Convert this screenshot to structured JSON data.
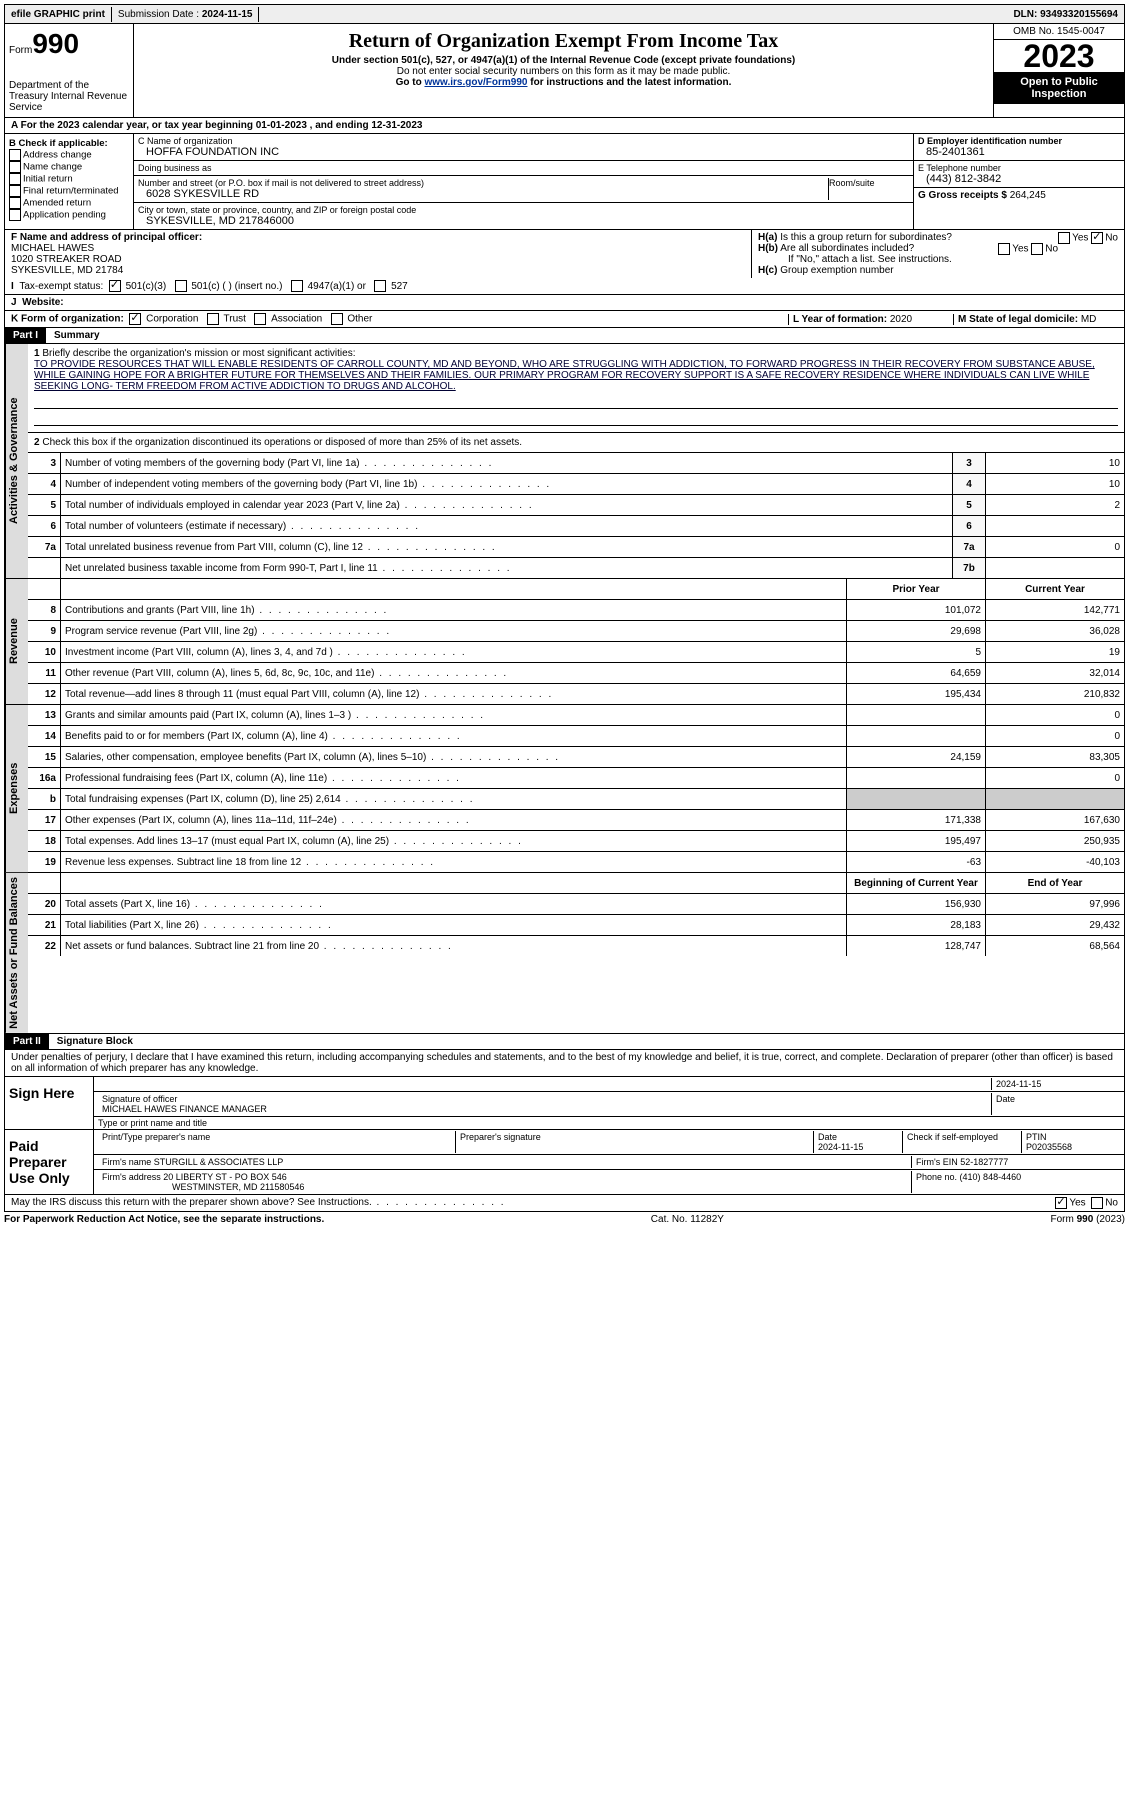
{
  "topbar": {
    "efile": "efile GRAPHIC print",
    "submission_label": "Submission Date : ",
    "submission_date": "2024-11-15",
    "dln_label": "DLN: ",
    "dln": "93493320155694"
  },
  "header": {
    "form_word": "Form",
    "form_num": "990",
    "dept": "Department of the Treasury Internal Revenue Service",
    "title": "Return of Organization Exempt From Income Tax",
    "sub": "Under section 501(c), 527, or 4947(a)(1) of the Internal Revenue Code (except private foundations)",
    "ssn": "Do not enter social security numbers on this form as it may be made public.",
    "goto_pre": "Go to ",
    "goto_link": "www.irs.gov/Form990",
    "goto_post": " for instructions and the latest information.",
    "omb": "OMB No. 1545-0047",
    "year": "2023",
    "open": "Open to Public Inspection"
  },
  "rowA": {
    "text_pre": "A For the 2023 calendar year, or tax year beginning ",
    "begin": "01-01-2023",
    "mid": "  , and ending ",
    "end": "12-31-2023"
  },
  "colB": {
    "title": "B Check if applicable:",
    "items": [
      "Address change",
      "Name change",
      "Initial return",
      "Final return/terminated",
      "Amended return",
      "Application pending"
    ]
  },
  "colC": {
    "name_label": "C Name of organization",
    "name": "HOFFA FOUNDATION INC",
    "dba_label": "Doing business as",
    "dba": "",
    "street_label": "Number and street (or P.O. box if mail is not delivered to street address)",
    "room_label": "Room/suite",
    "street": "6028 SYKESVILLE RD",
    "city_label": "City or town, state or province, country, and ZIP or foreign postal code",
    "city": "SYKESVILLE, MD  217846000"
  },
  "colD": {
    "ein_label": "D Employer identification number",
    "ein": "85-2401361",
    "phone_label": "E Telephone number",
    "phone": "(443) 812-3842",
    "gross_label": "G Gross receipts $ ",
    "gross": "264,245"
  },
  "rowF": {
    "label": "F Name and address of principal officer:",
    "name": "MICHAEL HAWES",
    "addr1": "1020 STREAKER ROAD",
    "addr2": "SYKESVILLE, MD  21784"
  },
  "rowH": {
    "ha": "Is this a group return for subordinates?",
    "hb": "Are all subordinates included?",
    "hb_note": "If \"No,\" attach a list. See instructions.",
    "hc": "Group exemption number",
    "yes": "Yes",
    "no": "No"
  },
  "rowI": {
    "label": "Tax-exempt status:",
    "opts": [
      "501(c)(3)",
      "501(c) (  ) (insert no.)",
      "4947(a)(1) or",
      "527"
    ]
  },
  "rowJ": {
    "label": "Website:",
    "val": ""
  },
  "rowK": {
    "label": "K Form of organization:",
    "opts": [
      "Corporation",
      "Trust",
      "Association",
      "Other"
    ],
    "L_label": "L Year of formation: ",
    "L_val": "2020",
    "M_label": "M State of legal domicile: ",
    "M_val": "MD"
  },
  "part1": {
    "header": "Part I",
    "title": "Summary",
    "mission_label": "Briefly describe the organization's mission or most significant activities:",
    "mission": "TO PROVIDE RESOURCES THAT WILL ENABLE RESIDENTS OF CARROLL COUNTY, MD AND BEYOND, WHO ARE STRUGGLING WITH ADDICTION, TO FORWARD PROGRESS IN THEIR RECOVERY FROM SUBSTANCE ABUSE, WHILE GAINING HOPE FOR A BRIGHTER FUTURE FOR THEMSELVES AND THEIR FAMILIES. OUR PRIMARY PROGRAM FOR RECOVERY SUPPORT IS A SAFE RECOVERY RESIDENCE WHERE INDIVIDUALS CAN LIVE WHILE SEEKING LONG- TERM FREEDOM FROM ACTIVE ADDICTION TO DRUGS AND ALCOHOL.",
    "line2": "Check this box         if the organization discontinued its operations or disposed of more than 25% of its net assets.",
    "rows_gov": [
      {
        "n": "3",
        "d": "Number of voting members of the governing body (Part VI, line 1a)",
        "k": "3",
        "v": "10"
      },
      {
        "n": "4",
        "d": "Number of independent voting members of the governing body (Part VI, line 1b)",
        "k": "4",
        "v": "10"
      },
      {
        "n": "5",
        "d": "Total number of individuals employed in calendar year 2023 (Part V, line 2a)",
        "k": "5",
        "v": "2"
      },
      {
        "n": "6",
        "d": "Total number of volunteers (estimate if necessary)",
        "k": "6",
        "v": ""
      },
      {
        "n": "7a",
        "d": "Total unrelated business revenue from Part VIII, column (C), line 12",
        "k": "7a",
        "v": "0"
      },
      {
        "n": "",
        "d": "Net unrelated business taxable income from Form 990-T, Part I, line 11",
        "k": "7b",
        "v": ""
      }
    ],
    "prior_hdr": "Prior Year",
    "curr_hdr": "Current Year",
    "rows_rev": [
      {
        "n": "8",
        "d": "Contributions and grants (Part VIII, line 1h)",
        "p": "101,072",
        "c": "142,771"
      },
      {
        "n": "9",
        "d": "Program service revenue (Part VIII, line 2g)",
        "p": "29,698",
        "c": "36,028"
      },
      {
        "n": "10",
        "d": "Investment income (Part VIII, column (A), lines 3, 4, and 7d )",
        "p": "5",
        "c": "19"
      },
      {
        "n": "11",
        "d": "Other revenue (Part VIII, column (A), lines 5, 6d, 8c, 9c, 10c, and 11e)",
        "p": "64,659",
        "c": "32,014"
      },
      {
        "n": "12",
        "d": "Total revenue—add lines 8 through 11 (must equal Part VIII, column (A), line 12)",
        "p": "195,434",
        "c": "210,832"
      }
    ],
    "rows_exp": [
      {
        "n": "13",
        "d": "Grants and similar amounts paid (Part IX, column (A), lines 1–3 )",
        "p": "",
        "c": "0"
      },
      {
        "n": "14",
        "d": "Benefits paid to or for members (Part IX, column (A), line 4)",
        "p": "",
        "c": "0"
      },
      {
        "n": "15",
        "d": "Salaries, other compensation, employee benefits (Part IX, column (A), lines 5–10)",
        "p": "24,159",
        "c": "83,305"
      },
      {
        "n": "16a",
        "d": "Professional fundraising fees (Part IX, column (A), line 11e)",
        "p": "",
        "c": "0"
      },
      {
        "n": "b",
        "d": "Total fundraising expenses (Part IX, column (D), line 25) 2,614",
        "p": "grey",
        "c": "grey"
      },
      {
        "n": "17",
        "d": "Other expenses (Part IX, column (A), lines 11a–11d, 11f–24e)",
        "p": "171,338",
        "c": "167,630"
      },
      {
        "n": "18",
        "d": "Total expenses. Add lines 13–17 (must equal Part IX, column (A), line 25)",
        "p": "195,497",
        "c": "250,935"
      },
      {
        "n": "19",
        "d": "Revenue less expenses. Subtract line 18 from line 12",
        "p": "-63",
        "c": "-40,103"
      }
    ],
    "begin_hdr": "Beginning of Current Year",
    "end_hdr": "End of Year",
    "rows_net": [
      {
        "n": "20",
        "d": "Total assets (Part X, line 16)",
        "p": "156,930",
        "c": "97,996"
      },
      {
        "n": "21",
        "d": "Total liabilities (Part X, line 26)",
        "p": "28,183",
        "c": "29,432"
      },
      {
        "n": "22",
        "d": "Net assets or fund balances. Subtract line 21 from line 20",
        "p": "128,747",
        "c": "68,564"
      }
    ],
    "tabs": {
      "gov": "Activities & Governance",
      "rev": "Revenue",
      "exp": "Expenses",
      "net": "Net Assets or Fund Balances"
    }
  },
  "part2": {
    "header": "Part II",
    "title": "Signature Block",
    "penalties": "Under penalties of perjury, I declare that I have examined this return, including accompanying schedules and statements, and to the best of my knowledge and belief, it is true, correct, and complete. Declaration of preparer (other than officer) is based on all information of which preparer has any knowledge.",
    "sign_here": "Sign Here",
    "sig_officer_label": "Signature of officer",
    "sig_officer": "MICHAEL HAWES FINANCE MANAGER",
    "sig_date": "2024-11-15",
    "date_label": "Date",
    "type_label": "Type or print name and title",
    "paid": "Paid Preparer Use Only",
    "prep_name_label": "Print/Type preparer's name",
    "prep_sig_label": "Preparer's signature",
    "prep_date": "2024-11-15",
    "self_emp": "Check        if self-employed",
    "ptin_label": "PTIN",
    "ptin": "P02035568",
    "firm_name_label": "Firm's name   ",
    "firm_name": "STURGILL & ASSOCIATES LLP",
    "firm_ein_label": "Firm's EIN  ",
    "firm_ein": "52-1827777",
    "firm_addr_label": "Firm's address ",
    "firm_addr": "20 LIBERTY ST - PO BOX 546",
    "firm_city": "WESTMINSTER, MD  211580546",
    "phone_label": "Phone no. ",
    "phone": "(410) 848-4460",
    "discuss": "May the IRS discuss this return with the preparer shown above? See Instructions."
  },
  "footer": {
    "pra": "For Paperwork Reduction Act Notice, see the separate instructions.",
    "cat": "Cat. No. 11282Y",
    "form": "Form 990 (2023)"
  }
}
